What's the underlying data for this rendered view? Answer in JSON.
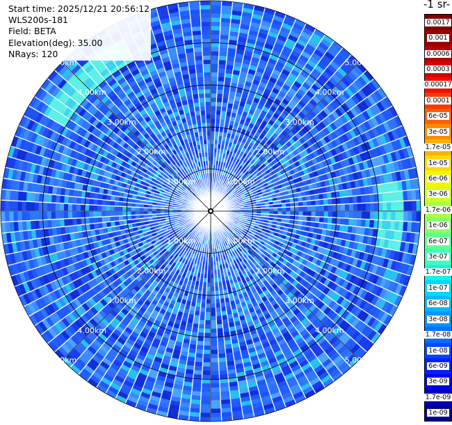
{
  "info": {
    "start_time": "Start time: 2025/12/21 20:56:12",
    "station": "WLS200s-181",
    "field": "Field: BETA",
    "elevation": "Elevation(deg): 35.00",
    "nrays": "NRays: 120"
  },
  "colorbar": {
    "title": "-1 sr-",
    "labels": [
      "0.0017",
      "0.001",
      "0.0006",
      "0.0003",
      "0.00017",
      "0.0001",
      "6e-05",
      "3e-05",
      "1.7e-05",
      "1e-05",
      "6e-06",
      "3e-06",
      "1.7e-06",
      "1e-06",
      "6e-07",
      "3e-07",
      "1.7e-07",
      "1e-07",
      "6e-08",
      "3e-08",
      "1.7e-08",
      "1e-08",
      "6e-09",
      "3e-09",
      "1.7e-09",
      "1e-09"
    ],
    "colors": [
      "#7f0000",
      "#990000",
      "#b80000",
      "#d80000",
      "#f41000",
      "#ff3800",
      "#ff6000",
      "#ff8c00",
      "#ffb200",
      "#ffd800",
      "#f5f500",
      "#d0ff1f",
      "#aaff45",
      "#86ff6b",
      "#60ff91",
      "#3dffba",
      "#18f2de",
      "#00d8ff",
      "#00b8ff",
      "#0094ff",
      "#0070ff",
      "#0048ff",
      "#0020ff",
      "#0000e6",
      "#0000b8",
      "#00008c"
    ]
  },
  "chart_data": {
    "type": "polar_heatmap",
    "field": "BETA",
    "elevation_deg": 35.0,
    "n_rays": 120,
    "range_unit": "km",
    "range_rings": [
      1,
      2,
      3,
      4,
      5
    ],
    "range_labels": [
      "1.00km",
      "2.00km",
      "3.00km",
      "4.00km",
      "5.00km"
    ],
    "range_max": 5.0,
    "value_scale": "log",
    "value_range": [
      1e-09,
      0.0017
    ],
    "dominant_values": [
      3e-08,
      6e-08
    ],
    "enhanced_band": {
      "range_km": [
        4.0,
        4.5
      ],
      "value": 1.7e-07,
      "azimuth_deg_sectors": [
        [
          80,
          100
        ],
        [
          300,
          330
        ]
      ]
    }
  }
}
